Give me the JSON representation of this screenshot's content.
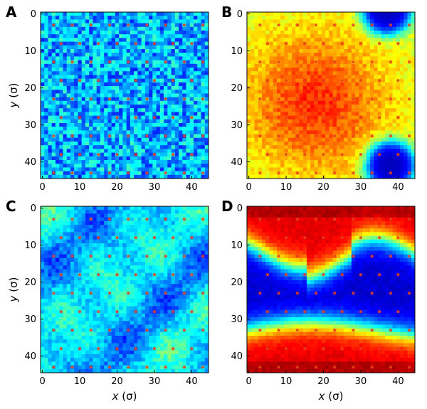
{
  "chart_data": [
    {
      "type": "heatmap",
      "panel_label": "A",
      "x_ticks": [
        "0",
        "10",
        "20",
        "30",
        "40"
      ],
      "y_ticks": [
        "0",
        "10",
        "20",
        "30",
        "40"
      ],
      "xlim": [
        0,
        44
      ],
      "ylim": [
        0,
        44
      ],
      "xlabel": "",
      "ylabel": "y (σ)",
      "colormap": "jet",
      "pattern": "noise",
      "base_level": 0.3,
      "dot_lattice_spacing": 5
    },
    {
      "type": "heatmap",
      "panel_label": "B",
      "x_ticks": [
        "0",
        "10",
        "20",
        "30",
        "40"
      ],
      "y_ticks": [
        "0",
        "10",
        "20",
        "30",
        "40"
      ],
      "xlim": [
        0,
        44
      ],
      "ylim": [
        0,
        44
      ],
      "xlabel": "",
      "ylabel": "",
      "colormap": "jet",
      "pattern": "droplets",
      "base_level": 0.78,
      "dot_lattice_spacing": 5
    },
    {
      "type": "heatmap",
      "panel_label": "C",
      "x_ticks": [
        "0",
        "10",
        "20",
        "30",
        "40"
      ],
      "y_ticks": [
        "0",
        "10",
        "20",
        "30",
        "40"
      ],
      "xlim": [
        0,
        44
      ],
      "ylim": [
        0,
        44
      ],
      "xlabel": "x (σ)",
      "ylabel": "y (σ)",
      "colormap": "jet",
      "pattern": "patchy",
      "base_level": 0.3,
      "dot_lattice_spacing": 5
    },
    {
      "type": "heatmap",
      "panel_label": "D",
      "x_ticks": [
        "0",
        "10",
        "20",
        "30",
        "40"
      ],
      "y_ticks": [
        "0",
        "10",
        "20",
        "30",
        "40"
      ],
      "xlim": [
        0,
        44
      ],
      "ylim": [
        0,
        44
      ],
      "xlabel": "x (σ)",
      "ylabel": "",
      "colormap": "jet",
      "pattern": "stripe",
      "base_level": 0.9,
      "dot_lattice_spacing": 5
    }
  ]
}
